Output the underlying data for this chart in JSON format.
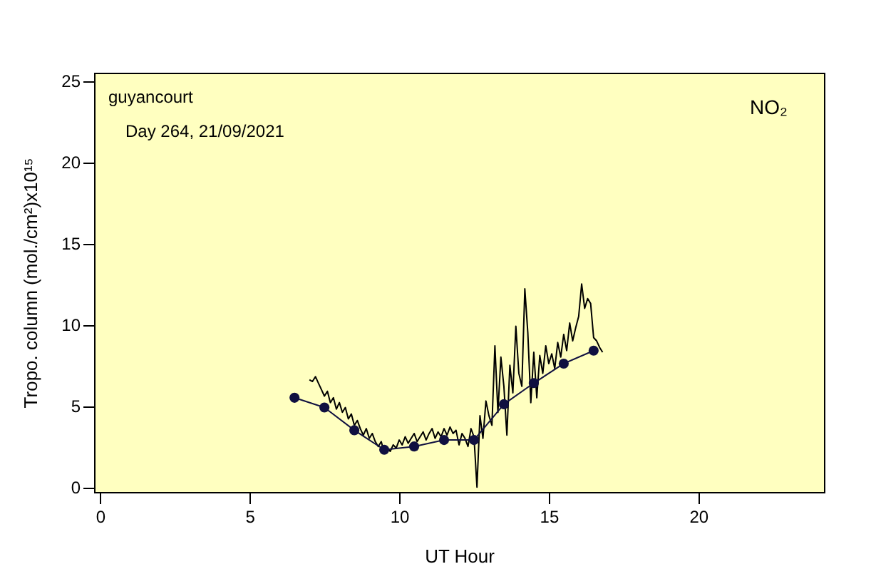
{
  "chart_data": {
    "type": "line",
    "xlabel": "UT Hour",
    "ylabel": "Tropo. column (mol./cm²)x10¹⁵",
    "annotations": [
      "guyancourt",
      "Day 264, 21/09/2021",
      "NO₂"
    ],
    "xlim": [
      -0.2,
      24.2
    ],
    "ylim": [
      -0.3,
      25.5
    ],
    "xticks": [
      0,
      5,
      10,
      15,
      20
    ],
    "yticks": [
      0,
      5,
      10,
      15,
      20,
      25
    ],
    "grid": false,
    "series": [
      {
        "color": "#000000",
        "marker": "none",
        "x": [
          7.0,
          7.1,
          7.2,
          7.3,
          7.4,
          7.5,
          7.6,
          7.7,
          7.8,
          7.9,
          8.0,
          8.1,
          8.2,
          8.3,
          8.4,
          8.5,
          8.6,
          8.7,
          8.8,
          8.9,
          9.0,
          9.1,
          9.2,
          9.3,
          9.4,
          9.5,
          9.6,
          9.7,
          9.8,
          9.9,
          10.0,
          10.1,
          10.2,
          10.3,
          10.4,
          10.5,
          10.6,
          10.7,
          10.8,
          10.9,
          11.0,
          11.1,
          11.2,
          11.3,
          11.4,
          11.5,
          11.6,
          11.7,
          11.8,
          11.9,
          12.0,
          12.1,
          12.2,
          12.3,
          12.4,
          12.5,
          12.6,
          12.7,
          12.8,
          12.9,
          13.0,
          13.1,
          13.2,
          13.3,
          13.4,
          13.5,
          13.6,
          13.7,
          13.8,
          13.9,
          14.0,
          14.1,
          14.2,
          14.3,
          14.4,
          14.5,
          14.6,
          14.7,
          14.8,
          14.9,
          15.0,
          15.1,
          15.2,
          15.3,
          15.4,
          15.5,
          15.6,
          15.7,
          15.8,
          15.9,
          16.0,
          16.1,
          16.2,
          16.3,
          16.4,
          16.5,
          16.6,
          16.7,
          16.8
        ],
        "values": [
          6.6,
          6.5,
          6.8,
          6.4,
          6.0,
          5.6,
          5.9,
          5.2,
          5.5,
          4.8,
          5.2,
          4.6,
          4.9,
          4.2,
          4.5,
          3.8,
          4.1,
          3.6,
          3.2,
          3.6,
          3.0,
          3.3,
          2.8,
          2.5,
          2.8,
          2.1,
          2.4,
          2.2,
          2.6,
          2.4,
          2.9,
          2.6,
          3.1,
          2.7,
          3.0,
          3.3,
          2.8,
          3.1,
          3.4,
          2.9,
          3.3,
          3.6,
          3.0,
          3.4,
          3.1,
          3.6,
          3.2,
          3.7,
          3.3,
          3.5,
          2.6,
          3.3,
          3.0,
          2.5,
          3.6,
          3.1,
          0.0,
          4.4,
          3.0,
          5.3,
          4.4,
          3.8,
          8.7,
          4.6,
          8.0,
          6.2,
          3.2,
          7.5,
          5.8,
          9.9,
          7.0,
          6.2,
          12.2,
          9.5,
          5.2,
          8.3,
          5.5,
          8.1,
          7.0,
          8.7,
          7.6,
          8.2,
          7.3,
          8.9,
          8.0,
          9.4,
          8.4,
          10.1,
          9.0,
          9.8,
          10.5,
          12.5,
          11.0,
          11.6,
          11.3,
          9.2,
          9.0,
          8.6,
          8.3
        ]
      },
      {
        "color": "#101040",
        "marker": "circle",
        "x": [
          6.5,
          7.5,
          8.5,
          9.5,
          10.5,
          11.5,
          12.5,
          13.5,
          14.5,
          15.5,
          16.5
        ],
        "values": [
          5.5,
          4.9,
          3.5,
          2.3,
          2.5,
          2.9,
          2.9,
          5.1,
          6.4,
          7.6,
          8.4
        ]
      }
    ]
  }
}
